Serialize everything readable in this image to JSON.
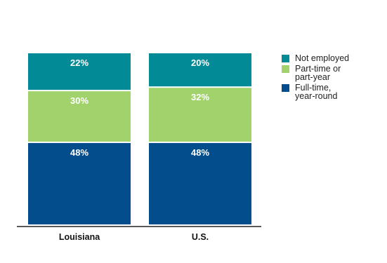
{
  "chart_data": {
    "type": "bar",
    "stacked": true,
    "categories": [
      "Louisiana",
      "U.S."
    ],
    "series": [
      {
        "name": "Full-time, year-round",
        "values": [
          48,
          48
        ],
        "labels": [
          "48%",
          "48%"
        ],
        "color": "#034d8c"
      },
      {
        "name": "Part-time or part-year",
        "values": [
          30,
          32
        ],
        "labels": [
          "30%",
          "32%"
        ],
        "color": "#a1d26b"
      },
      {
        "name": "Not employed",
        "values": [
          22,
          20
        ],
        "labels": [
          "22%",
          "20%"
        ],
        "color": "#028b97"
      }
    ],
    "ylim": [
      0,
      100
    ],
    "grid": false,
    "legend_position": "right"
  },
  "legend": [
    {
      "label": "Not employed",
      "color": "#028b97"
    },
    {
      "label": "Part-time or\npart-year",
      "color": "#a1d26b"
    },
    {
      "label": "Full-time,\nyear-round",
      "color": "#034d8c"
    }
  ]
}
